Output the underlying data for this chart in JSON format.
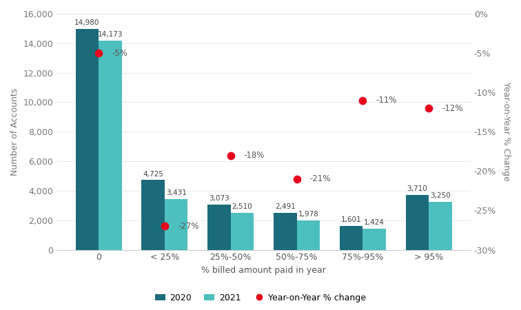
{
  "categories": [
    "0",
    "< 25%",
    "25%-50%",
    "50%-75%",
    "75%-95%",
    "> 95%"
  ],
  "values_2020": [
    14980,
    4725,
    3073,
    2491,
    1601,
    3710
  ],
  "values_2021": [
    14173,
    3431,
    2510,
    1978,
    1424,
    3250
  ],
  "yoy_pct": [
    -5,
    -27,
    -18,
    -21,
    -11,
    -12
  ],
  "bar_color_2020": "#1b6b7b",
  "bar_color_2021": "#4dbfbf",
  "dot_color": "#e8001c",
  "xlabel": "% billed amount paid in year",
  "ylabel_left": "Number of Accounts",
  "ylabel_right": "Year-on-Year % Change",
  "ylim_left": [
    0,
    16000
  ],
  "ylim_right": [
    -30,
    0
  ],
  "yticks_left": [
    0,
    2000,
    4000,
    6000,
    8000,
    10000,
    12000,
    14000,
    16000
  ],
  "yticks_right": [
    0,
    -5,
    -10,
    -15,
    -20,
    -25,
    -30
  ],
  "ytick_labels_right": [
    "0%",
    "-5%",
    "-10%",
    "-15%",
    "-20%",
    "-25%",
    "-30%"
  ],
  "legend_labels": [
    "2020",
    "2021",
    "Year-on-Year % change"
  ],
  "bar_width": 0.35
}
